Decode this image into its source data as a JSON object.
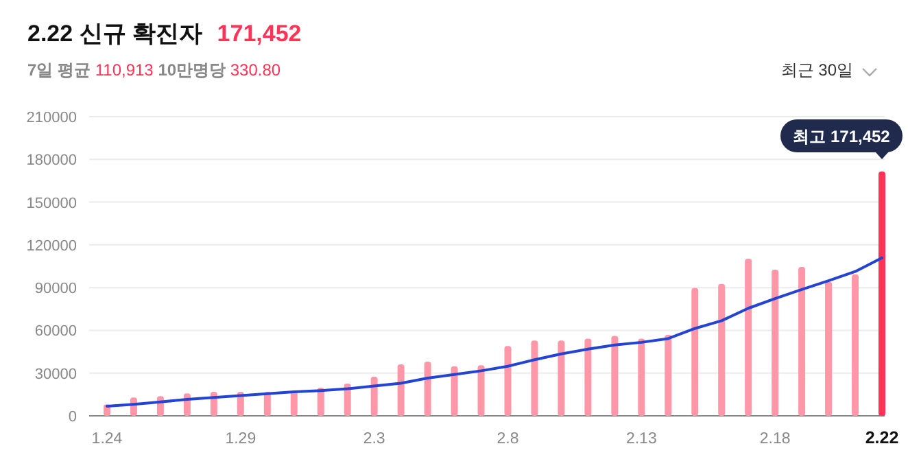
{
  "chart_data": {
    "type": "bar",
    "title": "2.22 신규 확진자 171,452",
    "subtitle": "7일 평균 110,913 10만명당 330.80",
    "categories": [
      "1.24",
      null,
      null,
      null,
      null,
      "1.29",
      null,
      null,
      null,
      null,
      "2.3",
      null,
      null,
      null,
      null,
      "2.8",
      null,
      null,
      null,
      null,
      "2.13",
      null,
      null,
      null,
      null,
      "2.18",
      null,
      null,
      null,
      "2.22"
    ],
    "series": [
      {
        "colors": [
          "#ff97a8",
          "#ff97a8",
          "#ff97a8",
          "#ff97a8",
          "#ff97a8",
          "#ff97a8",
          "#ff97a8",
          "#ff97a8",
          "#ff97a8",
          "#ff97a8",
          "#ff97a8",
          "#ff97a8",
          "#ff97a8",
          "#ff97a8",
          "#ff97a8",
          "#ff97a8",
          "#ff97a8",
          "#ff97a8",
          "#ff97a8",
          "#ff97a8",
          "#ff97a8",
          "#ff97a8",
          "#ff97a8",
          "#ff97a8",
          "#ff97a8",
          "#ff97a8",
          "#ff97a8",
          "#ff97a8",
          "#ff97a8",
          "#ff3355"
        ],
        "values": [
          8100,
          12900,
          13900,
          15800,
          16800,
          16800,
          16800,
          17700,
          19700,
          22600,
          27400,
          36100,
          38100,
          34800,
          35500,
          49000,
          52900,
          52900,
          54200,
          56100,
          54200,
          56800,
          89700,
          92600,
          110300,
          102600,
          104500,
          94200,
          99400,
          171452
        ]
      },
      {
        "type": "line",
        "color": "#2343d3",
        "values": [
          6800,
          8100,
          9700,
          11600,
          12900,
          14200,
          15500,
          16800,
          17700,
          19000,
          21000,
          22900,
          26500,
          29000,
          31600,
          34800,
          39400,
          43500,
          46800,
          49700,
          51600,
          54200,
          61300,
          66800,
          75500,
          82300,
          88700,
          94800,
          101300,
          110913
        ]
      }
    ],
    "ylim": [
      0,
      210000
    ],
    "yticks": [
      0,
      30000,
      60000,
      90000,
      120000,
      150000,
      180000,
      210000
    ],
    "grid": "y",
    "annotations": [
      {
        "text": "최고 171,452",
        "x": "2.22",
        "y": 171452
      },
      "최근 30일"
    ]
  }
}
